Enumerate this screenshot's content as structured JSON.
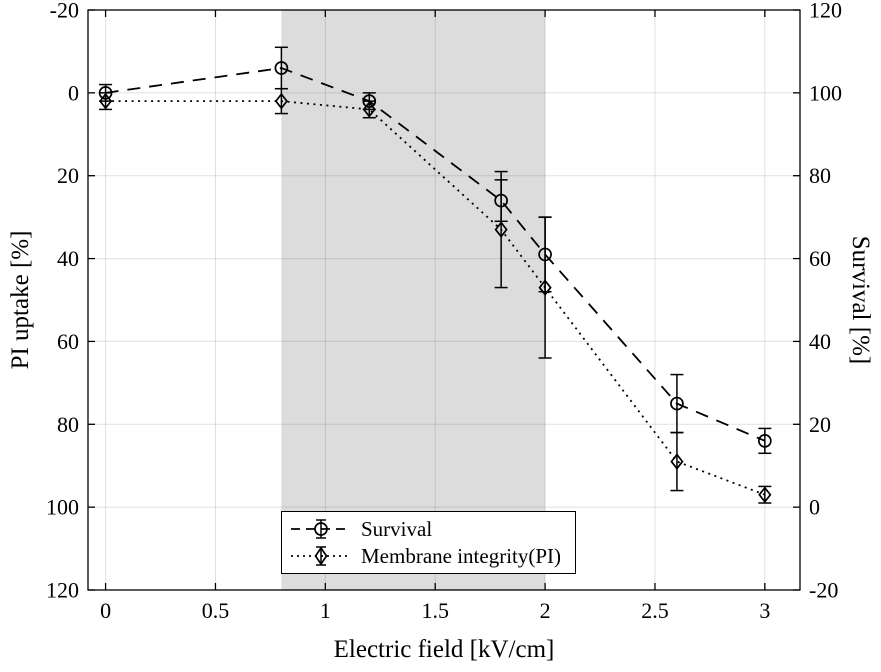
{
  "figure": {
    "background": "#ffffff"
  },
  "chart_data": {
    "type": "line",
    "title": "",
    "xlabel": "Electric field [kV/cm]",
    "ylabel_left": "PI uptake [%]",
    "ylabel_right": "Survival [%]",
    "xlim": [
      -0.08,
      3.16
    ],
    "xticks": [
      0,
      0.5,
      1,
      1.5,
      2,
      2.5,
      3
    ],
    "ylim_left": [
      -20,
      120
    ],
    "ylim_right": [
      -20,
      120
    ],
    "left_axis_reversed": true,
    "yticks_left": [
      -20,
      0,
      20,
      40,
      60,
      80,
      100,
      120
    ],
    "yticks_right": [
      120,
      100,
      80,
      60,
      40,
      20,
      0,
      -20
    ],
    "grid": true,
    "shaded_region": {
      "x_start": 0.8,
      "x_end": 2.0,
      "color": "#dcdcdc"
    },
    "series": [
      {
        "name": "Survival",
        "axis": "right",
        "line_style": "dashed",
        "marker": "circle",
        "color": "#000000",
        "x": [
          0,
          0.8,
          1.2,
          1.8,
          2.0,
          2.6,
          3.0
        ],
        "y": [
          100,
          106,
          98,
          74,
          61,
          25,
          16
        ],
        "yerr": [
          2,
          5,
          2,
          5,
          9,
          7,
          3
        ]
      },
      {
        "name": "Membrane integrity(PI)",
        "axis": "left",
        "line_style": "dotted",
        "marker": "diamond",
        "color": "#000000",
        "x": [
          0,
          0.8,
          1.2,
          1.8,
          2.0,
          2.6,
          3.0
        ],
        "y": [
          2,
          2,
          4,
          33,
          47,
          89,
          97
        ],
        "yerr": [
          2,
          3,
          2,
          14,
          17,
          7,
          2
        ]
      }
    ],
    "legend": {
      "position": "bottom-center-left",
      "items": [
        "Survival",
        "Membrane integrity(PI)"
      ]
    }
  }
}
